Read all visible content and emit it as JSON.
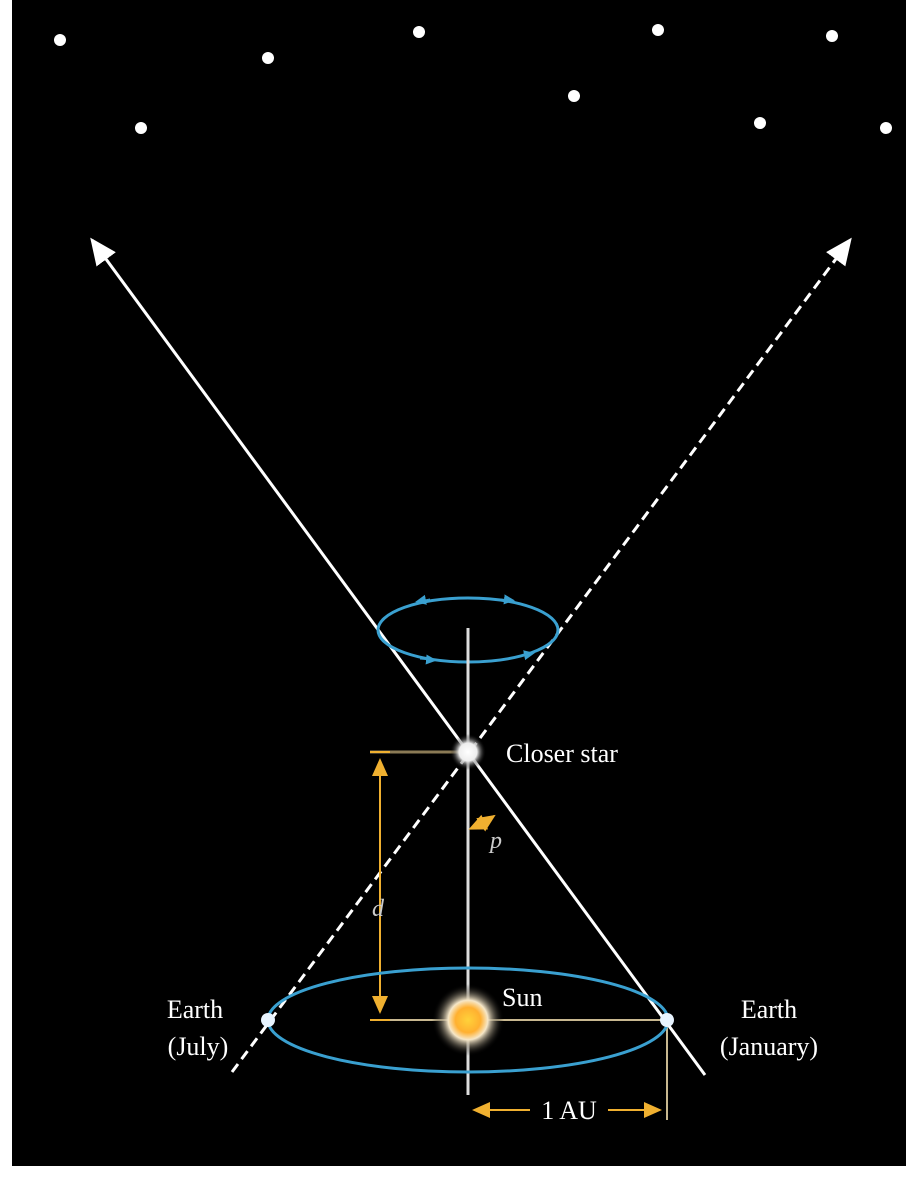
{
  "labels": {
    "closer_star": "Closer star",
    "p": "p",
    "d": "d",
    "sun": "Sun",
    "earth_july": [
      "Earth",
      "(July)"
    ],
    "earth_january": [
      "Earth",
      "(January)"
    ],
    "au": "1 AU"
  }
}
